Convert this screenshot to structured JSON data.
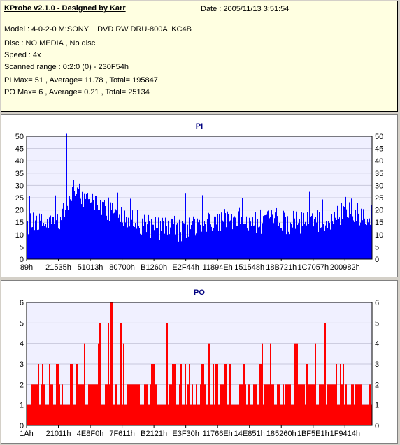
{
  "header": {
    "title": "KProbe v2.1.0 - Designed by Karr",
    "date": "Date : 2005/11/13 3:51:54",
    "lines": [
      "Model : 4-0-2-0 M:SONY    DVD RW DRU-800A  KC4B",
      "Disc : NO MEDIA , No disc",
      "Speed : 4x",
      "Scanned range : 0:2:0 (0) - 230F54h",
      "PI Max= 51 , Average= 11.78 , Total= 195847",
      "PO Max= 6 , Average= 0.21 , Total= 25134"
    ]
  },
  "chart_data": [
    {
      "type": "bar",
      "title": "PI",
      "color": "#0000ff",
      "ylim": [
        0,
        50
      ],
      "yticks": [
        0,
        5,
        10,
        15,
        20,
        25,
        30,
        35,
        40,
        45,
        50
      ],
      "xtick_labels": [
        "89h",
        "21535h",
        "51013h",
        "80700h",
        "B1260h",
        "E2F44h",
        "11894Eh",
        "151548h",
        "18B721h",
        "1C7057h",
        "200982h"
      ],
      "max": 51,
      "average": 11.78,
      "profile_x": [
        0,
        0.08,
        0.1,
        0.12,
        0.14,
        0.16,
        0.2,
        0.24,
        0.3,
        0.34,
        0.38,
        0.42,
        0.46,
        0.5,
        0.54,
        0.6,
        0.7,
        0.8,
        0.9,
        0.96,
        1
      ],
      "profile_y": [
        14,
        14,
        17,
        24,
        27,
        25,
        22,
        20,
        17,
        14,
        12,
        12,
        12,
        13,
        15,
        16,
        15,
        15,
        17,
        18,
        19
      ]
    },
    {
      "type": "bar",
      "title": "PO",
      "color": "#ff0000",
      "ylim": [
        0,
        6
      ],
      "yticks": [
        0,
        1,
        2,
        3,
        4,
        5,
        6
      ],
      "xtick_labels": [
        "1Ah",
        "21011h",
        "4E8F0h",
        "7F611h",
        "B2121h",
        "E3F30h",
        "11766Eh",
        "14E851h",
        "185260h",
        "1BF5E1h",
        "1F9414h"
      ],
      "max": 6,
      "average": 0.21
    }
  ]
}
